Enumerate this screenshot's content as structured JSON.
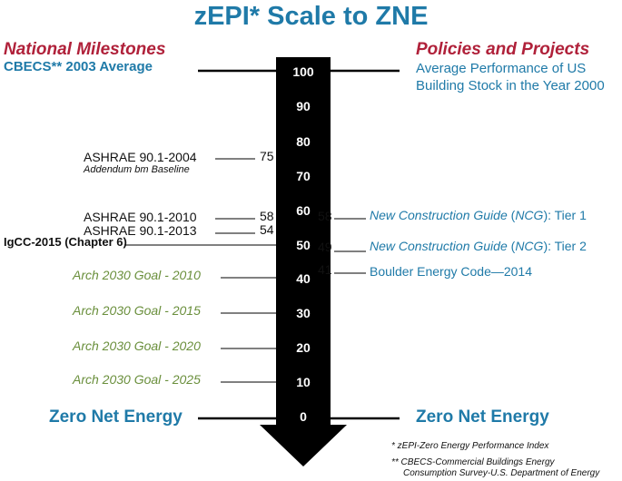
{
  "title": "zEPI* Scale to ZNE",
  "left_heading": "National Milestones",
  "left_subheading": "CBECS** 2003 Average",
  "right_heading": "Policies and Projects",
  "right_subheading_1": "Average Performance of US",
  "right_subheading_2": "Building Stock in the Year 2000",
  "scale": [
    "100",
    "90",
    "80",
    "70",
    "60",
    "50",
    "40",
    "30",
    "20",
    "10",
    "0"
  ],
  "left_items": {
    "ashrae_2004": "ASHRAE 90.1-2004",
    "ashrae_2004_sub": "Addendum bm Baseline",
    "ashrae_2004_val": "75",
    "ashrae_2010": "ASHRAE 90.1-2010",
    "ashrae_2010_val": "58",
    "ashrae_2013": "ASHRAE 90.1-2013",
    "ashrae_2013_val": "54",
    "igcc": "IgCC-2015 (Chapter 6)",
    "arch_2010": "Arch 2030 Goal - 2010",
    "arch_2015": "Arch 2030 Goal - 2015",
    "arch_2020": "Arch 2030 Goal - 2020",
    "arch_2025": "Arch 2030 Goal - 2025"
  },
  "right_items": {
    "ncg1_val": "58",
    "ncg1_a": "New Construction Guide",
    "ncg1_b": " (",
    "ncg1_c": "NCG",
    "ncg1_d": "): Tier 1",
    "ncg2_val": "49",
    "ncg2_a": "New Construction Guide",
    "ncg2_b": " (",
    "ncg2_c": "NCG",
    "ncg2_d": "): Tier 2",
    "boulder_val": "41",
    "boulder": "Boulder Energy Code—2014"
  },
  "zero_left": "Zero Net Energy",
  "zero_right": "Zero Net Energy",
  "footnote1": "*  zEPI-Zero Energy Performance Index",
  "footnote2a": "**  CBECS-Commercial Buildings Energy",
  "footnote2b": "Consumption Survey-U.S. Department of Energy",
  "colors": {
    "blue": "#1f7aa8",
    "red": "#b0213a",
    "green": "#6a8f3c",
    "arrow": "#000000"
  }
}
